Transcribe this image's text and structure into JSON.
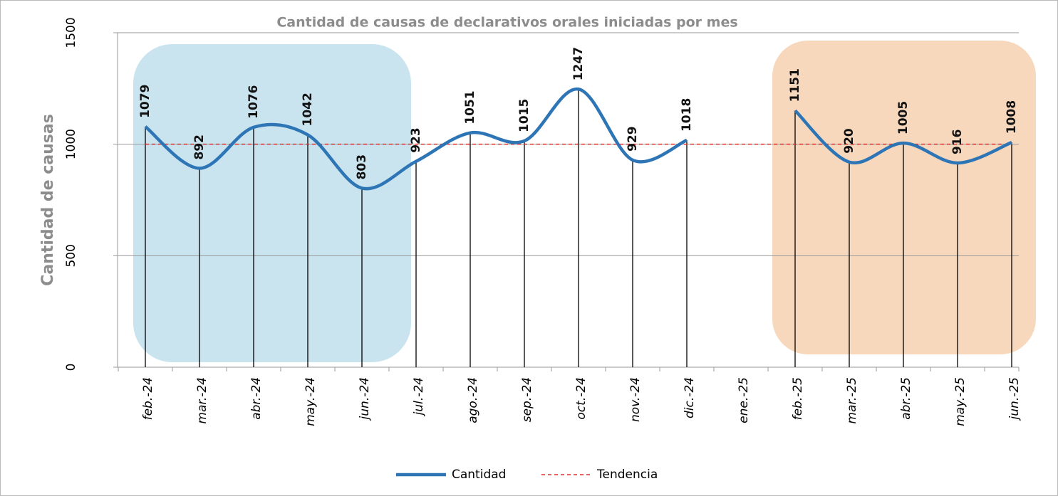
{
  "chart_data": {
    "type": "line",
    "title": "Cantidad de causas de declarativos orales iniciadas por mes",
    "y_label": "Cantidad de causas",
    "categories": [
      "feb.-24",
      "mar.-24",
      "abr.-24",
      "may.-24",
      "jun.-24",
      "jul.-24",
      "ago.-24",
      "sep.-24",
      "oct.-24",
      "nov.-24",
      "dic.-24",
      "ene.-25",
      "feb.-25",
      "mar.-25",
      "abr.-25",
      "may.-25",
      "jun.-25"
    ],
    "series": [
      {
        "name": "Cantidad",
        "color": "#2e75b6",
        "values": [
          1079,
          892,
          1076,
          1042,
          803,
          923,
          1051,
          1015,
          1247,
          929,
          1018,
          null,
          1151,
          920,
          1005,
          916,
          1008
        ]
      },
      {
        "name": "Tendencia",
        "color": "#e03030",
        "values": [
          1000,
          1000,
          1000,
          1000,
          1000,
          1000,
          1000,
          1000,
          1000,
          1000,
          1000,
          1000,
          1000,
          1000,
          1000,
          1000,
          1000
        ]
      }
    ],
    "ylim": [
      0,
      1500
    ],
    "yticks": [
      0,
      500,
      1000,
      1500
    ],
    "grid": true,
    "legend": "bottom"
  }
}
